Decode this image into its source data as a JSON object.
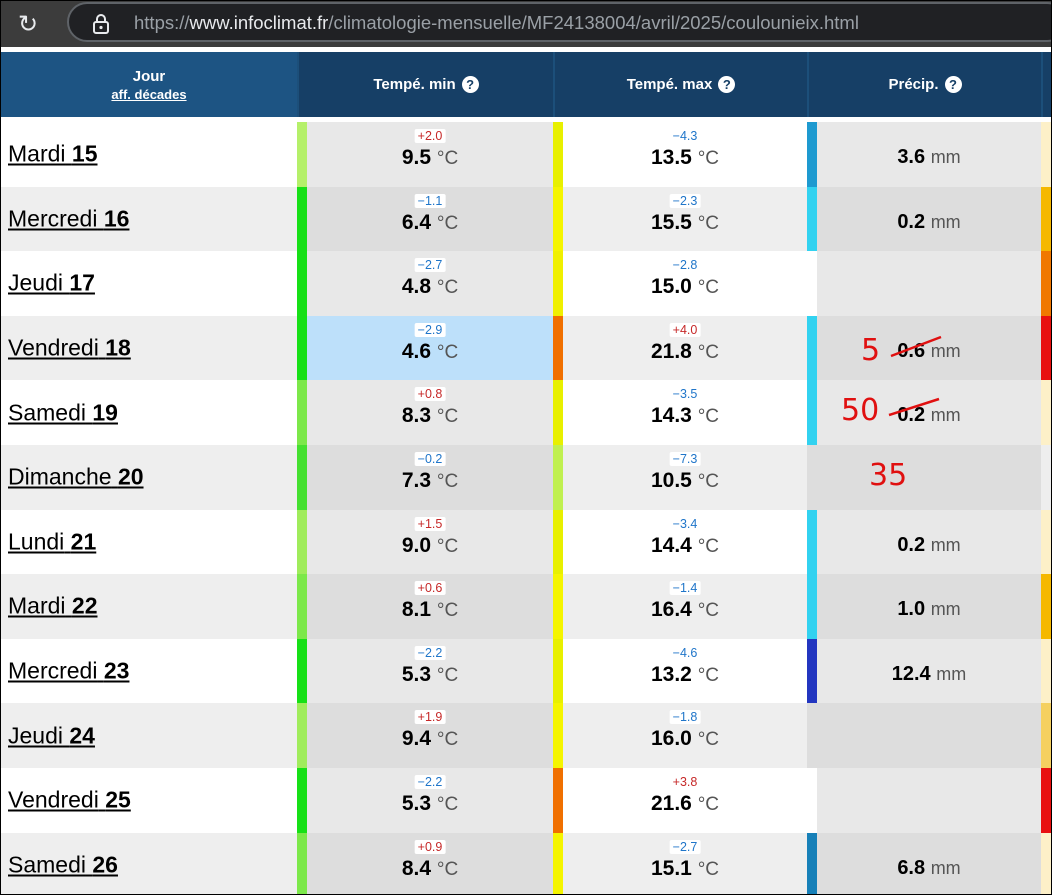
{
  "browser": {
    "url_prefix": "https://",
    "url_host": "www.infoclimat.fr",
    "url_path": "/climatologie-mensuelle/MF24138004/avril/2025/coulounieix.html",
    "reload_icon": "reload-icon",
    "lock_icon": "lock-icon"
  },
  "header": {
    "day_label": "Jour",
    "day_sub": "aff. décades",
    "tmin_label": "Tempé. min",
    "tmax_label": "Tempé. max",
    "prec_label": "Précip.",
    "help_glyph": "?"
  },
  "units": {
    "temp": "°C",
    "prec": "mm"
  },
  "rows": [
    {
      "day": "Mardi",
      "num": "15",
      "tmin": "9.5",
      "tmin_dev": "+2.0",
      "tmax": "13.5",
      "tmax_dev": "−4.3",
      "prec": "3.6",
      "bg": "#ffffff",
      "bar_min": "#b5f06a",
      "bar_max": "#e8f000",
      "bar_prec": "#1e9ad0",
      "bar_edge": "#fdf0c8",
      "cell_bg": "#e8e8e8"
    },
    {
      "day": "Mercredi",
      "num": "16",
      "tmin": "6.4",
      "tmin_dev": "−1.1",
      "tmax": "15.5",
      "tmax_dev": "−2.3",
      "prec": "0.2",
      "bg": "#eeeeee",
      "bar_min": "#17e017",
      "bar_max": "#f5f500",
      "bar_prec": "#32d2f0",
      "bar_edge": "#f5b800",
      "cell_bg": "#dddddd"
    },
    {
      "day": "Jeudi",
      "num": "17",
      "tmin": "4.8",
      "tmin_dev": "−2.7",
      "tmax": "15.0",
      "tmax_dev": "−2.8",
      "prec": "",
      "bg": "#ffffff",
      "bar_min": "#17e017",
      "bar_max": "#f0f000",
      "bar_prec": "#ffffff",
      "bar_edge": "#f07800",
      "cell_bg": "#e8e8e8"
    },
    {
      "day": "Vendredi",
      "num": "18",
      "tmin": "4.6",
      "tmin_dev": "−2.9",
      "tmax": "21.8",
      "tmax_dev": "+4.0",
      "prec": "0.6",
      "bg": "#eeeeee",
      "bar_min": "#17e017",
      "bar_max": "#f07000",
      "bar_prec": "#32d2f0",
      "bar_edge": "#e81010",
      "cell_bg": "#dddddd",
      "tmin_bg": "#bde0fa",
      "handwritten": "5"
    },
    {
      "day": "Samedi",
      "num": "19",
      "tmin": "8.3",
      "tmin_dev": "+0.8",
      "tmax": "14.3",
      "tmax_dev": "−3.5",
      "prec": "0.2",
      "bg": "#ffffff",
      "bar_min": "#7ce84a",
      "bar_max": "#e8f000",
      "bar_prec": "#32d2f0",
      "bar_edge": "#fdf0c8",
      "cell_bg": "#e8e8e8",
      "handwritten": "50"
    },
    {
      "day": "Dimanche",
      "num": "20",
      "tmin": "7.3",
      "tmin_dev": "−0.2",
      "tmax": "10.5",
      "tmax_dev": "−7.3",
      "prec": "",
      "bg": "#eeeeee",
      "bar_min": "#45e030",
      "bar_max": "#c0f050",
      "bar_prec": "#dddddd",
      "bar_edge": "#eeeeee",
      "cell_bg": "#dddddd",
      "handwritten": "35"
    },
    {
      "day": "Lundi",
      "num": "21",
      "tmin": "9.0",
      "tmin_dev": "+1.5",
      "tmax": "14.4",
      "tmax_dev": "−3.4",
      "prec": "0.2",
      "bg": "#ffffff",
      "bar_min": "#a0ec5c",
      "bar_max": "#e8f000",
      "bar_prec": "#32d2f0",
      "bar_edge": "#fdf0c8",
      "cell_bg": "#e8e8e8"
    },
    {
      "day": "Mardi",
      "num": "22",
      "tmin": "8.1",
      "tmin_dev": "+0.6",
      "tmax": "16.4",
      "tmax_dev": "−1.4",
      "prec": "1.0",
      "bg": "#eeeeee",
      "bar_min": "#7ce84a",
      "bar_max": "#f5f500",
      "bar_prec": "#32d2f0",
      "bar_edge": "#f5b800",
      "cell_bg": "#dddddd"
    },
    {
      "day": "Mercredi",
      "num": "23",
      "tmin": "5.3",
      "tmin_dev": "−2.2",
      "tmax": "13.2",
      "tmax_dev": "−4.6",
      "prec": "12.4",
      "bg": "#ffffff",
      "bar_min": "#17e017",
      "bar_max": "#e8f000",
      "bar_prec": "#2336c0",
      "bar_edge": "#fdf0c8",
      "cell_bg": "#e8e8e8"
    },
    {
      "day": "Jeudi",
      "num": "24",
      "tmin": "9.4",
      "tmin_dev": "+1.9",
      "tmax": "16.0",
      "tmax_dev": "−1.8",
      "prec": "",
      "bg": "#eeeeee",
      "bar_min": "#a0ec5c",
      "bar_max": "#f5f500",
      "bar_prec": "#dddddd",
      "bar_edge": "#f5d060",
      "cell_bg": "#dddddd"
    },
    {
      "day": "Vendredi",
      "num": "25",
      "tmin": "5.3",
      "tmin_dev": "−2.2",
      "tmax": "21.6",
      "tmax_dev": "+3.8",
      "prec": "",
      "bg": "#ffffff",
      "bar_min": "#17e017",
      "bar_max": "#f07000",
      "bar_prec": "#ffffff",
      "bar_edge": "#e81010",
      "cell_bg": "#e8e8e8"
    },
    {
      "day": "Samedi",
      "num": "26",
      "tmin": "8.4",
      "tmin_dev": "+0.9",
      "tmax": "15.1",
      "tmax_dev": "−2.7",
      "prec": "6.8",
      "bg": "#eeeeee",
      "bar_min": "#7ce84a",
      "bar_max": "#f5f500",
      "bar_prec": "#1780b8",
      "bar_edge": "#fdf0c8",
      "cell_bg": "#dddddd"
    }
  ]
}
